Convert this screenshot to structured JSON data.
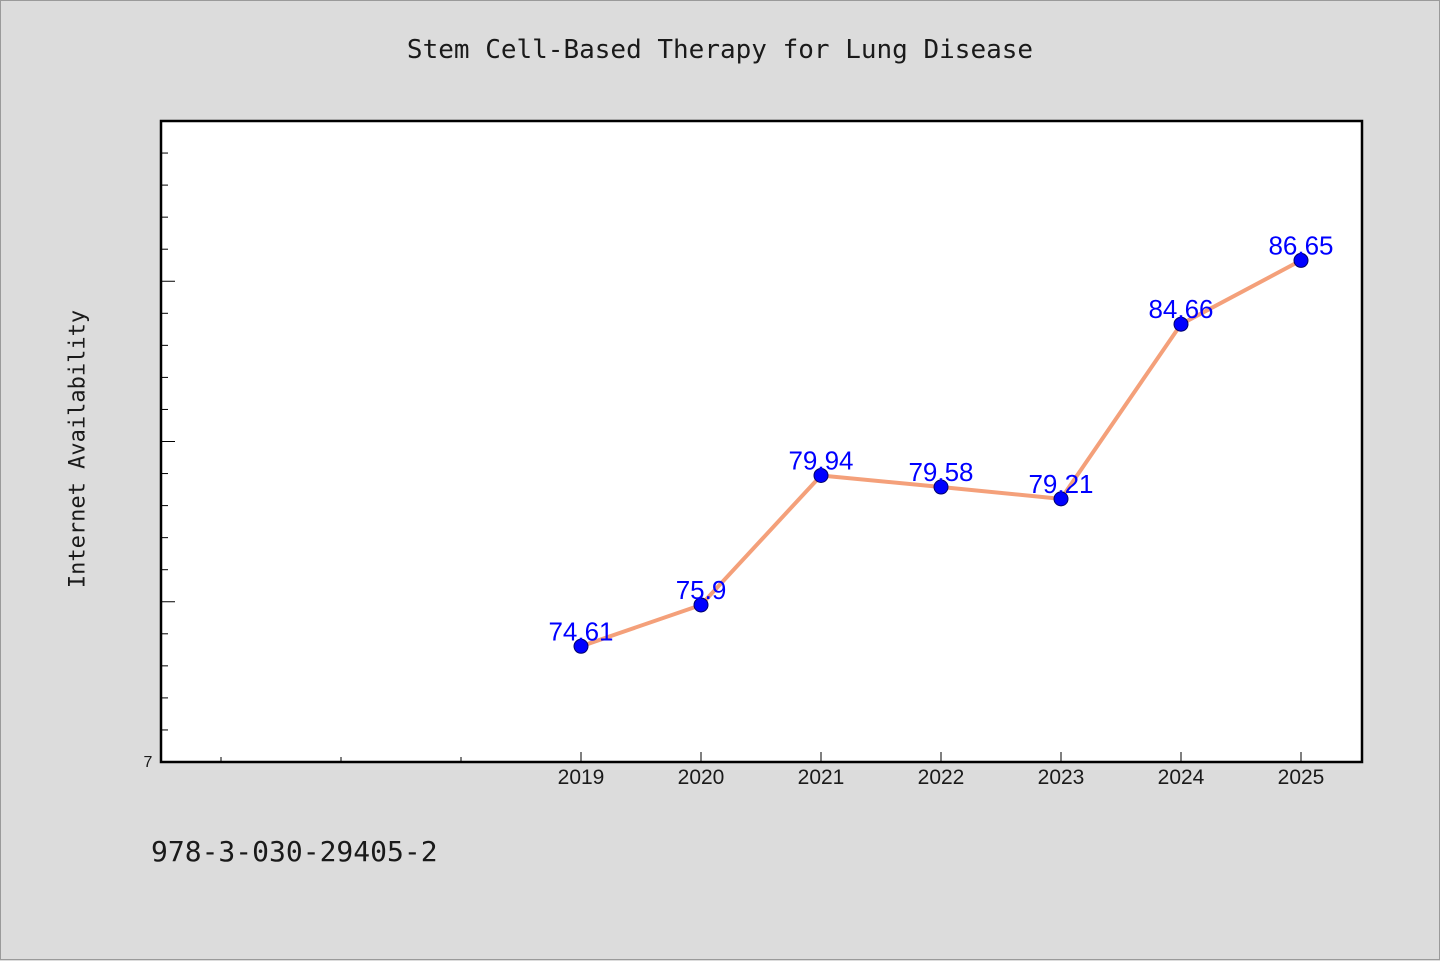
{
  "chart_data": {
    "type": "line",
    "title": "Stem Cell-Based Therapy for Lung Disease",
    "ylabel": "Internet Availability",
    "xlabel": "",
    "x": [
      "2019",
      "2020",
      "2021",
      "2022",
      "2023",
      "2024",
      "2025"
    ],
    "series": [
      {
        "values": [
          74.61,
          75.9,
          79.94,
          79.58,
          79.21,
          84.66,
          86.65
        ]
      }
    ],
    "data_labels": [
      "74.61",
      "75.9",
      "79.94",
      "79.58",
      "79.21",
      "84.66",
      "86.65"
    ],
    "ytick_labels": [
      "7"
    ],
    "ylim": [
      71,
      91
    ],
    "grid": false,
    "line_color": "#f4a07a",
    "marker_color": "#0000ff",
    "label_color": "#0000ff",
    "plot_background": "#ffffff",
    "figure_background": "#dcdcdc"
  },
  "footer": {
    "text": "978-3-030-29405-2"
  }
}
